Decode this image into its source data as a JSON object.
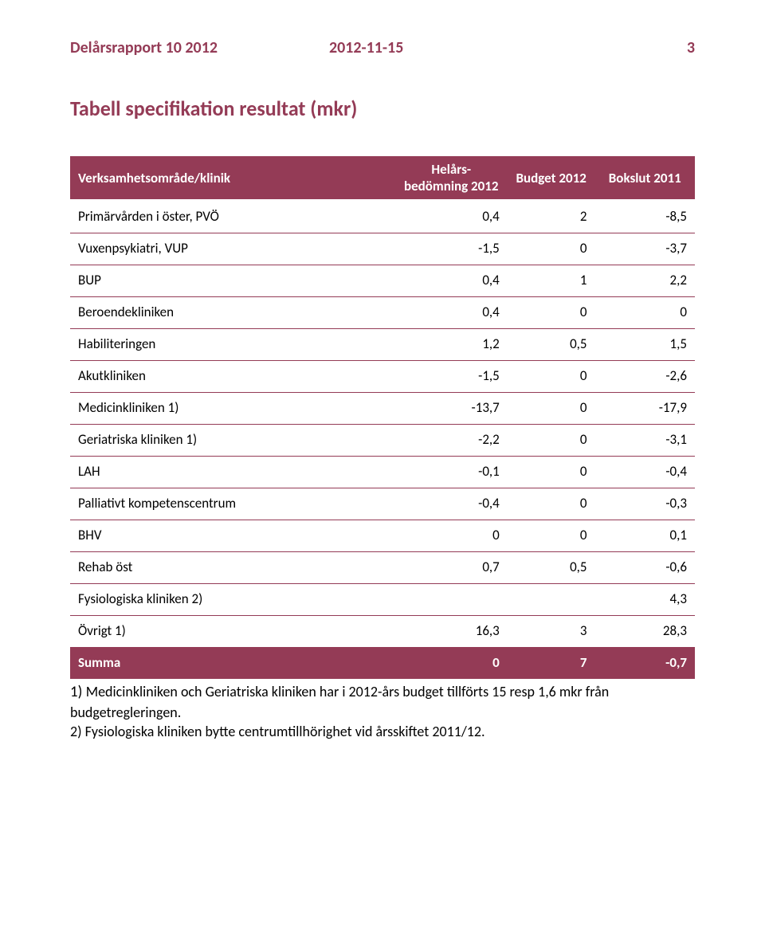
{
  "colors": {
    "brand": "#943b56",
    "text": "#000000",
    "bg": "#ffffff",
    "row_divider": "#943b56"
  },
  "header": {
    "doc_title": "Delårsrapport 10 2012",
    "date": "2012-11-15",
    "page_number": "3"
  },
  "section_title": "Tabell specifikation resultat (mkr)",
  "table": {
    "columns": [
      "Verksamhetsområde/klinik",
      "Helårs-bedömning 2012",
      "Budget 2012",
      "Bokslut 2011"
    ],
    "col_widths_pct": [
      52,
      18,
      14,
      16
    ],
    "rows": [
      {
        "label": "Primärvården i öster, PVÖ",
        "a": "0,4",
        "b": "2",
        "c": "-8,5"
      },
      {
        "label": "Vuxenpsykiatri, VUP",
        "a": "-1,5",
        "b": "0",
        "c": "-3,7"
      },
      {
        "label": "BUP",
        "a": "0,4",
        "b": "1",
        "c": "2,2"
      },
      {
        "label": "Beroendekliniken",
        "a": "0,4",
        "b": "0",
        "c": "0"
      },
      {
        "label": "Habiliteringen",
        "a": "1,2",
        "b": "0,5",
        "c": "1,5"
      },
      {
        "label": "Akutkliniken",
        "a": "-1,5",
        "b": "0",
        "c": "-2,6"
      },
      {
        "label": "Medicinkliniken 1)",
        "a": "-13,7",
        "b": "0",
        "c": "-17,9"
      },
      {
        "label": "Geriatriska kliniken 1)",
        "a": "-2,2",
        "b": "0",
        "c": "-3,1"
      },
      {
        "label": "LAH",
        "a": "-0,1",
        "b": "0",
        "c": "-0,4"
      },
      {
        "label": "Palliativt kompetenscentrum",
        "a": "-0,4",
        "b": "0",
        "c": "-0,3"
      },
      {
        "label": "BHV",
        "a": "0",
        "b": "0",
        "c": "0,1"
      },
      {
        "label": "Rehab öst",
        "a": "0,7",
        "b": "0,5",
        "c": "-0,6"
      },
      {
        "label": "Fysiologiska kliniken 2)",
        "a": "",
        "b": "",
        "c": "4,3"
      },
      {
        "label": "Övrigt 1)",
        "a": "16,3",
        "b": "3",
        "c": "28,3"
      }
    ],
    "total": {
      "label": "Summa",
      "a": "0",
      "b": "7",
      "c": "-0,7"
    }
  },
  "footnotes": {
    "n1_lead": "1) ",
    "n1_text": "Medicinkliniken och Geriatriska kliniken har i 2012-års budget tillförts 15 resp 1,6 mkr från budgetregleringen.",
    "n2": "2) Fysiologiska kliniken bytte centrumtillhörighet vid årsskiftet 2011/12."
  }
}
